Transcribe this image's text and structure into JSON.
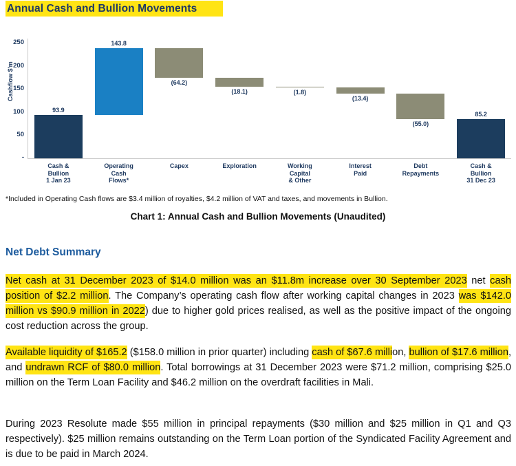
{
  "document": {
    "title": "Annual Cash and Bullion Movements",
    "footnote": "*Included in Operating Cash flows are $3.4 million of royalties, $4.2 million of VAT and taxes, and movements in Bullion.",
    "caption": "Chart 1: Annual Cash and Bullion Movements (Unaudited)",
    "section_heading": "Net Debt Summary",
    "paragraphs": [
      {
        "runs": [
          {
            "text": "Net cash at 31 December 2023 of $14.0 million was an $11.8m increase over 30 September 2023",
            "highlight": true
          },
          {
            "text": " net ",
            "highlight": false
          },
          {
            "text": "cash position of $2.2 million",
            "highlight": true
          },
          {
            "text": ". The Company’s operating cash flow after working capital changes in 2023 ",
            "highlight": false
          },
          {
            "text": "was $142.0 million vs $90.9 million in 2022",
            "highlight": true
          },
          {
            "text": ") due to higher gold prices realised, as well as the positive impact of the ongoing cost reduction across the group.",
            "highlight": false
          }
        ]
      },
      {
        "runs": [
          {
            "text": "Available liquidity of $165.2",
            "highlight": true
          },
          {
            "text": " ($158.0 million in prior quarter) including ",
            "highlight": false
          },
          {
            "text": "cash of $67.6 milli",
            "highlight": true
          },
          {
            "text": "on, ",
            "highlight": false
          },
          {
            "text": "bullion of $17.6 million",
            "highlight": true
          },
          {
            "text": ", and ",
            "highlight": false
          },
          {
            "text": "undrawn RCF of $80.0 million",
            "highlight": true
          },
          {
            "text": ". Total borrowings at 31 December 2023 were $71.2 million, comprising $25.0 million on the Term Loan Facility and $46.2 million on the overdraft facilities in Mali.",
            "highlight": false
          }
        ]
      },
      {
        "runs": [
          {
            "text": "During 2023 Resolute made $55 million in principal repayments ($30 million and $25 million in Q1 and Q3 respectively). $25 million remains outstanding on the Term Loan portion of the Syndicated Facility Agreement and is due to be paid in March 2024.",
            "highlight": false
          }
        ]
      }
    ]
  },
  "chart_data": {
    "type": "bar",
    "subtype": "waterfall",
    "title": "Annual Cash and Bullion Movements",
    "ylabel": "Cashflow $'m",
    "ylim": [
      0,
      259
    ],
    "yticks": [
      50,
      100,
      150,
      200,
      250
    ],
    "zero_tick_label": "-",
    "grid": false,
    "legend": "none",
    "colors": {
      "navy": "#1c3d5e",
      "blue": "#1a80c4",
      "olive": "#8c8c76",
      "label": "#1f3a60",
      "axis": "#c9c9c9"
    },
    "bars": [
      {
        "label": [
          "Cash &",
          "Bullion",
          "1 Jan 23"
        ],
        "value": 93.9,
        "display": "93.9",
        "kind": "total",
        "color": "navy"
      },
      {
        "label": [
          "Operating",
          "Cash",
          "Flows*"
        ],
        "value": 143.8,
        "display": "143.8",
        "kind": "flow",
        "color": "blue"
      },
      {
        "label": [
          "Capex"
        ],
        "value": -64.2,
        "display": "(64.2)",
        "kind": "flow",
        "color": "olive"
      },
      {
        "label": [
          "Exploration"
        ],
        "value": -18.1,
        "display": "(18.1)",
        "kind": "flow",
        "color": "olive"
      },
      {
        "label": [
          "Working",
          "Capital",
          "& Other"
        ],
        "value": -1.8,
        "display": "(1.8)",
        "kind": "flow",
        "color": "olive"
      },
      {
        "label": [
          "Interest",
          "Paid"
        ],
        "value": -13.4,
        "display": "(13.4)",
        "kind": "flow",
        "color": "olive"
      },
      {
        "label": [
          "Debt",
          "Repayments"
        ],
        "value": -55.0,
        "display": "(55.0)",
        "kind": "flow",
        "color": "olive"
      },
      {
        "label": [
          "Cash &",
          "Bullion",
          "31 Dec 23"
        ],
        "value": 85.2,
        "display": "85.2",
        "kind": "total",
        "color": "navy"
      }
    ]
  }
}
